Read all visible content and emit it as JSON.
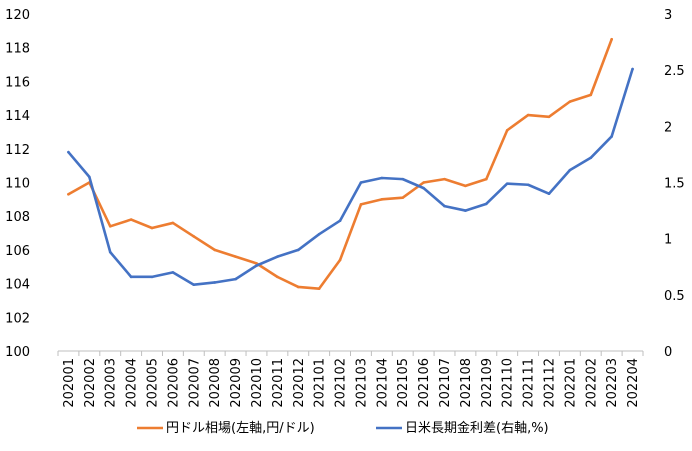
{
  "chart_data": {
    "type": "line",
    "x": [
      "202001",
      "202002",
      "202003",
      "202004",
      "202005",
      "202006",
      "202007",
      "202008",
      "202009",
      "202010",
      "202011",
      "202012",
      "202101",
      "202102",
      "202103",
      "202104",
      "202105",
      "202106",
      "202107",
      "202108",
      "202109",
      "202110",
      "202111",
      "202112",
      "202201",
      "202202",
      "202203",
      "202204"
    ],
    "y_left": {
      "lim": [
        100,
        120
      ],
      "ticks": [
        "100",
        "102",
        "104",
        "106",
        "108",
        "110",
        "112",
        "114",
        "116",
        "118",
        "120"
      ]
    },
    "y_right": {
      "lim": [
        0,
        3
      ],
      "ticks": [
        "0",
        "0.5",
        "1",
        "1.5",
        "2",
        "2.5",
        "3"
      ]
    },
    "series": [
      {
        "name": "円ドル相場(左軸,円/ドル)",
        "axis": "left",
        "color": "#ED7D31",
        "values": [
          109.3,
          110.0,
          107.4,
          107.8,
          107.3,
          107.6,
          106.8,
          106.0,
          105.6,
          105.2,
          104.4,
          103.8,
          103.7,
          105.4,
          108.7,
          109.0,
          109.1,
          110.0,
          110.2,
          109.8,
          110.2,
          113.1,
          114.0,
          113.9,
          114.8,
          115.2,
          118.5,
          null
        ]
      },
      {
        "name": "日米長期金利差(右軸,%)",
        "axis": "right",
        "color": "#4472C4",
        "values": [
          1.77,
          1.55,
          0.88,
          0.66,
          0.66,
          0.7,
          0.59,
          0.61,
          0.64,
          0.76,
          0.84,
          0.9,
          1.04,
          1.16,
          1.5,
          1.54,
          1.53,
          1.45,
          1.29,
          1.25,
          1.31,
          1.49,
          1.48,
          1.4,
          1.61,
          1.72,
          1.91,
          2.51
        ]
      }
    ],
    "grid": false,
    "legend": "bottom"
  }
}
